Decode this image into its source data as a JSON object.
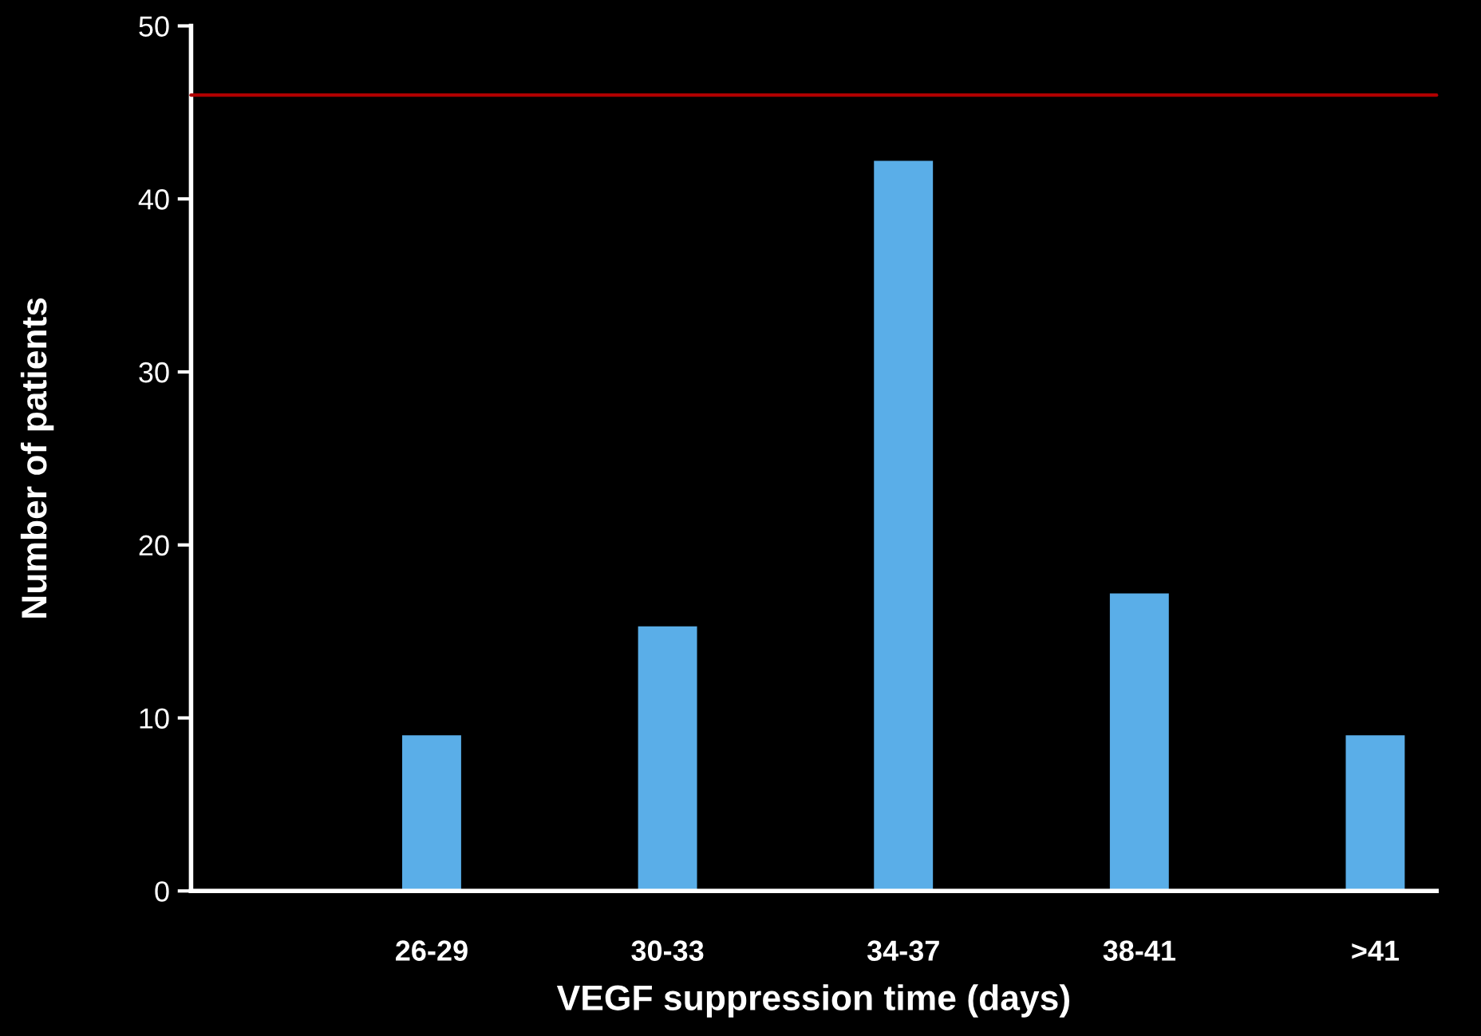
{
  "chart_data": {
    "type": "bar",
    "xlabel": "VEGF suppression time (days)",
    "ylabel": "Number of patients",
    "categories": [
      "26-29",
      "30-33",
      "34-37",
      "38-41",
      ">41"
    ],
    "values": [
      9,
      15.3,
      42.2,
      17.2,
      9
    ],
    "color": "#5aaee8",
    "ylim": [
      0,
      50
    ],
    "yticks": [
      0,
      10,
      20,
      30,
      40,
      50
    ],
    "grid": false,
    "ref_lines": [
      {
        "axis": "y",
        "value": 46,
        "color": "#b00000"
      }
    ]
  }
}
